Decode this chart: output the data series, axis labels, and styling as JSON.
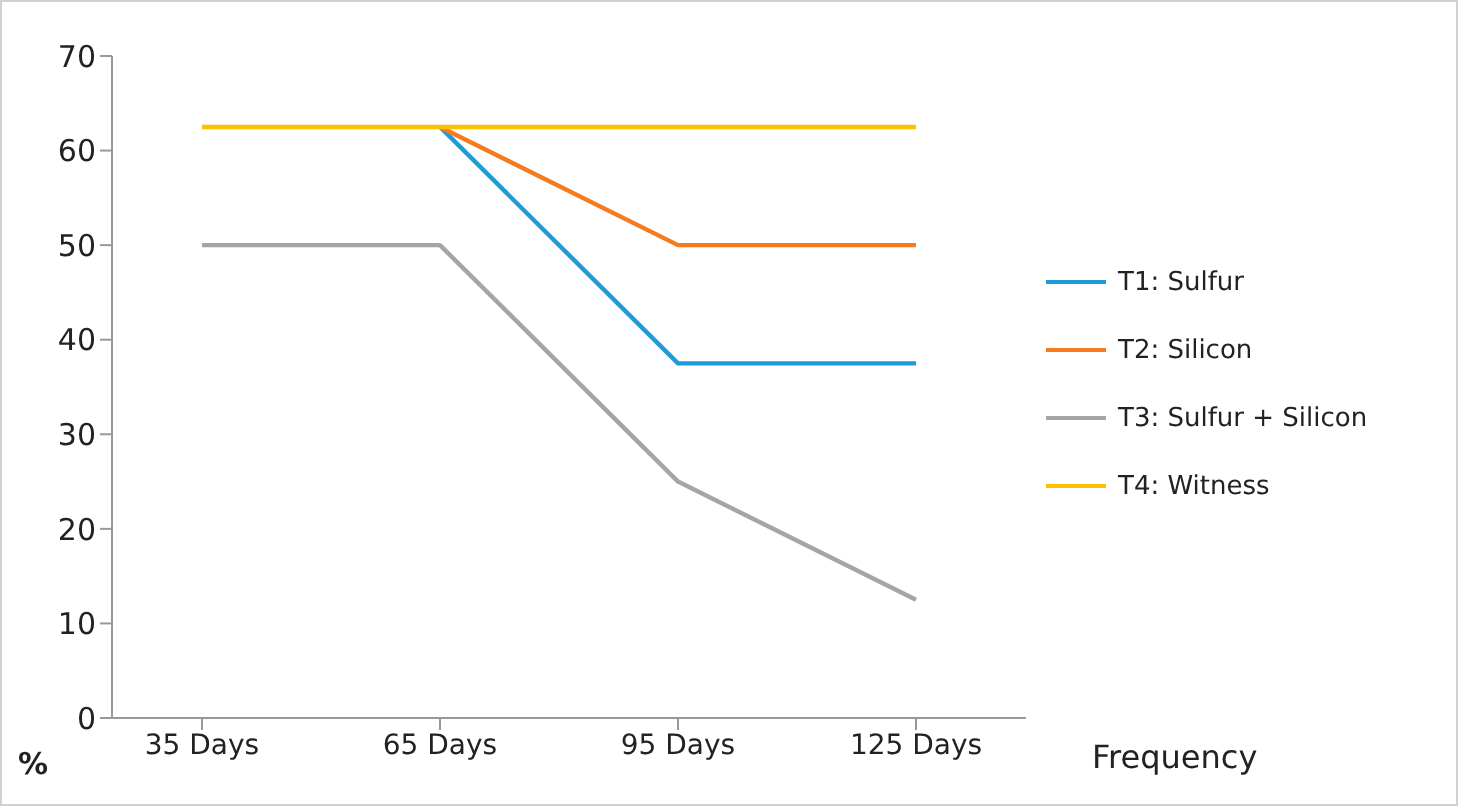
{
  "chart_data": {
    "type": "line",
    "xlabel": "Frequency",
    "ylabel": "%",
    "categories": [
      "35 Days",
      "65 Days",
      "95 Days",
      "125 Days"
    ],
    "series": [
      {
        "name": "T1: Sulfur",
        "color": "#1f9bd7",
        "values": [
          null,
          62.5,
          37.5,
          37.5
        ]
      },
      {
        "name": "T2: Silicon",
        "color": "#f47b20",
        "values": [
          null,
          62.5,
          50,
          50
        ]
      },
      {
        "name": "T3: Sulfur + Silicon",
        "color": "#a5a5a5",
        "values": [
          50,
          50,
          25,
          12.5
        ]
      },
      {
        "name": "T4: Witness",
        "color": "#ffc000",
        "values": [
          62.5,
          62.5,
          62.5,
          62.5
        ]
      }
    ],
    "ylim": [
      0,
      70
    ],
    "yticks": [
      0,
      10,
      20,
      30,
      40,
      50,
      60,
      70
    ],
    "grid": false,
    "legend": "right",
    "marker": "none",
    "line_style": "solid"
  }
}
